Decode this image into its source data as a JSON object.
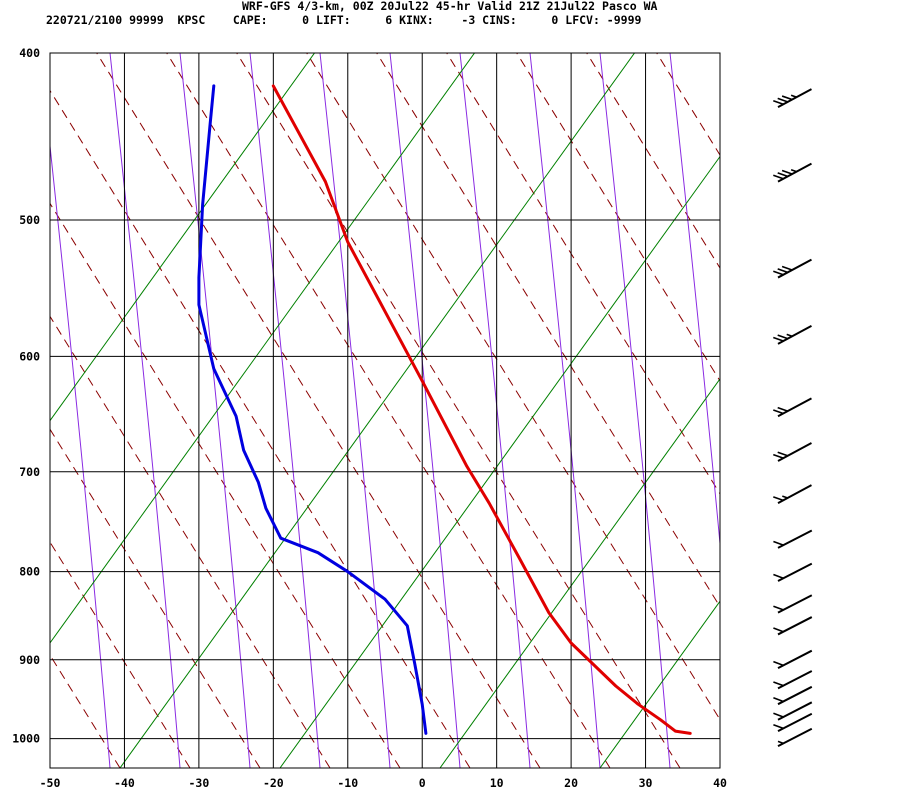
{
  "header": {
    "line1": "WRF-GFS 4/3-km, 00Z 20Jul22 45-hr Valid 21Z 21Jul22 Pasco WA",
    "line2": "220721/2100 99999  KPSC    CAPE:     0 LIFT:     6 KINX:    -3 CINS:     0 LFCV: -9999"
  },
  "colors": {
    "temperature": "#e00000",
    "dewpoint": "#0000e0",
    "dry_adiabat": "#8b0000",
    "moist_adiabat": "#8a2be2",
    "mixing_ratio": "#008000",
    "grid": "#000000"
  },
  "chart_data": {
    "type": "line",
    "title": "",
    "xlabel": "",
    "ylabel": "",
    "x_axis": {
      "ticks": [
        -50,
        -40,
        -30,
        -20,
        -10,
        0,
        10,
        20,
        30,
        40
      ]
    },
    "y_axis": {
      "scale": "log",
      "ticks": [
        400,
        500,
        600,
        700,
        800,
        900,
        1000
      ]
    },
    "xlim": [
      -50,
      40
    ],
    "ylim": [
      1040,
      400
    ],
    "series": [
      {
        "key": "temperature",
        "points": [
          [
            36,
            993
          ],
          [
            34,
            990
          ],
          [
            32,
            975
          ],
          [
            29,
            955
          ],
          [
            26,
            932
          ],
          [
            20,
            880
          ],
          [
            17,
            845
          ],
          [
            13,
            785
          ],
          [
            9,
            730
          ],
          [
            6,
            695
          ],
          [
            0,
            620
          ],
          [
            -5,
            565
          ],
          [
            -10,
            515
          ],
          [
            -13,
            475
          ],
          [
            -20,
            418
          ]
        ]
      },
      {
        "key": "dewpoint",
        "points": [
          [
            0.5,
            993
          ],
          [
            0,
            955
          ],
          [
            -1,
            905
          ],
          [
            -2,
            860
          ],
          [
            -5,
            830
          ],
          [
            -10,
            800
          ],
          [
            -14,
            780
          ],
          [
            -19,
            765
          ],
          [
            -21,
            735
          ],
          [
            -22,
            710
          ],
          [
            -24,
            680
          ],
          [
            -25,
            650
          ],
          [
            -28,
            610
          ],
          [
            -30,
            560
          ],
          [
            -30,
            540
          ],
          [
            -29.5,
            490
          ],
          [
            -28.5,
            440
          ],
          [
            -28,
            418
          ]
        ]
      }
    ],
    "grid": true
  },
  "wind_barbs": [
    {
      "pressure": 430,
      "speed_kt": 35,
      "direction_deg": 235
    },
    {
      "pressure": 475,
      "speed_kt": 35,
      "direction_deg": 235
    },
    {
      "pressure": 540,
      "speed_kt": 30,
      "direction_deg": 235
    },
    {
      "pressure": 590,
      "speed_kt": 25,
      "direction_deg": 235
    },
    {
      "pressure": 650,
      "speed_kt": 20,
      "direction_deg": 235
    },
    {
      "pressure": 690,
      "speed_kt": 20,
      "direction_deg": 235
    },
    {
      "pressure": 730,
      "speed_kt": 15,
      "direction_deg": 235
    },
    {
      "pressure": 775,
      "speed_kt": 10,
      "direction_deg": 240
    },
    {
      "pressure": 810,
      "speed_kt": 10,
      "direction_deg": 240
    },
    {
      "pressure": 845,
      "speed_kt": 10,
      "direction_deg": 240
    },
    {
      "pressure": 870,
      "speed_kt": 10,
      "direction_deg": 240
    },
    {
      "pressure": 910,
      "speed_kt": 10,
      "direction_deg": 240
    },
    {
      "pressure": 935,
      "speed_kt": 10,
      "direction_deg": 240
    },
    {
      "pressure": 955,
      "speed_kt": 10,
      "direction_deg": 240
    },
    {
      "pressure": 975,
      "speed_kt": 10,
      "direction_deg": 240
    },
    {
      "pressure": 990,
      "speed_kt": 10,
      "direction_deg": 240
    },
    {
      "pressure": 1010,
      "speed_kt": 5,
      "direction_deg": 240
    }
  ]
}
